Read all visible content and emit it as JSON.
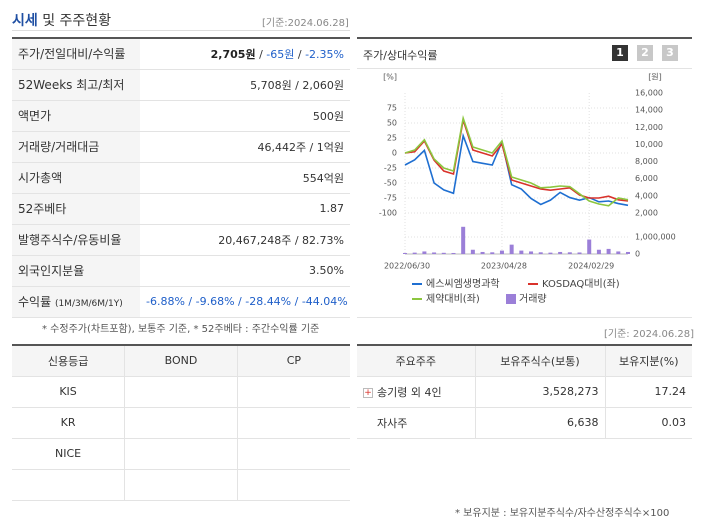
{
  "header": {
    "title_prefix": "시세",
    "title_rest": "및 주주현황",
    "date": "[기준:2024.06.28]"
  },
  "price_table": {
    "rows": [
      {
        "label": [
          {
            "text": "주가/전일대비/수익률",
            "style": "normal"
          }
        ],
        "value": [
          {
            "text": "2,705원",
            "style": "bold"
          },
          {
            "text": " / ",
            "style": "normal"
          },
          {
            "text": "-65원",
            "style": "blue"
          },
          {
            "text": " / ",
            "style": "normal"
          },
          {
            "text": "-2.35%",
            "style": "blue"
          }
        ]
      },
      {
        "label": [
          {
            "text": "52Weeks 최고/최저",
            "style": "normal"
          }
        ],
        "value": [
          {
            "text": "5,708원 / 2,060원",
            "style": "normal"
          }
        ]
      },
      {
        "label": [
          {
            "text": "액면가",
            "style": "normal"
          }
        ],
        "value": [
          {
            "text": "500원",
            "style": "normal"
          }
        ]
      },
      {
        "label": [
          {
            "text": "거래량/거래대금",
            "style": "normal"
          }
        ],
        "value": [
          {
            "text": "46,442주 / 1억원",
            "style": "normal"
          }
        ]
      },
      {
        "label": [
          {
            "text": "시가총액",
            "style": "normal"
          }
        ],
        "value": [
          {
            "text": "554억원",
            "style": "normal"
          }
        ]
      },
      {
        "label": [
          {
            "text": "52주베타",
            "style": "normal"
          }
        ],
        "value": [
          {
            "text": "1.87",
            "style": "normal"
          }
        ]
      },
      {
        "label": [
          {
            "text": "발행주식수/유동비율",
            "style": "normal"
          }
        ],
        "value": [
          {
            "text": "20,467,248주 / 82.73%",
            "style": "normal"
          }
        ]
      },
      {
        "label": [
          {
            "text": "외국인지분율",
            "style": "normal"
          }
        ],
        "value": [
          {
            "text": "3.50%",
            "style": "normal"
          }
        ]
      },
      {
        "label": [
          {
            "text": "수익률 ",
            "style": "normal"
          },
          {
            "text": "(1M/3M/6M/1Y)",
            "style": "small"
          }
        ],
        "value": [
          {
            "text": "-6.88% / -9.68% / -28.44% / -44.04%",
            "style": "blue"
          }
        ]
      }
    ]
  },
  "chart_panel": {
    "title": "주가/상대수익률",
    "buttons": [
      "1",
      "2",
      "3"
    ],
    "active": 0
  },
  "chart_data": {
    "type": "line",
    "categories": [
      "2022/06/30",
      null,
      null,
      null,
      null,
      null,
      null,
      null,
      null,
      null,
      "2023/04/28",
      null,
      null,
      null,
      null,
      null,
      null,
      null,
      null,
      "2024/02/29",
      null,
      null,
      null,
      null
    ],
    "series": [
      {
        "name": "에스씨엠생명과학",
        "color": "#1f6fd1",
        "axis": "y2",
        "values": [
          7600,
          8200,
          9300,
          5500,
          4700,
          4300,
          11000,
          8000,
          7800,
          7600,
          10300,
          5300,
          4800,
          3700,
          3000,
          3500,
          4400,
          3800,
          3500,
          3800,
          3300,
          3400,
          3100,
          2900
        ]
      },
      {
        "name": "KOSDAQ대비(좌)",
        "color": "#d9322b",
        "values": [
          0,
          2,
          20,
          -12,
          -30,
          -35,
          55,
          5,
          0,
          -5,
          15,
          -45,
          -50,
          -55,
          -60,
          -62,
          -60,
          -58,
          -70,
          -75,
          -75,
          -72,
          -78,
          -80
        ]
      },
      {
        "name": "제약대비(좌)",
        "color": "#8cc63f",
        "values": [
          0,
          5,
          22,
          -10,
          -25,
          -30,
          58,
          10,
          5,
          0,
          20,
          -40,
          -45,
          -50,
          -58,
          -57,
          -55,
          -56,
          -68,
          -80,
          -85,
          -88,
          -75,
          -78
        ]
      },
      {
        "name": "거래량",
        "color": "#9b7fd8",
        "type": "bar",
        "axis": "volume",
        "values": [
          60000,
          80000,
          150000,
          90000,
          70000,
          60000,
          1600000,
          250000,
          120000,
          100000,
          200000,
          550000,
          200000,
          150000,
          100000,
          80000,
          120000,
          100000,
          90000,
          850000,
          250000,
          300000,
          150000,
          120000
        ]
      }
    ],
    "ylabel": "[%]",
    "y2label": "[원]",
    "ylim": [
      -100,
      100
    ],
    "yticks": [
      75,
      50,
      25,
      0,
      -25,
      -50,
      -75,
      -100
    ],
    "y2lim": [
      2000,
      16000
    ],
    "y2ticks": [
      {
        "value": 16000,
        "label": "16,000"
      },
      {
        "value": 14000,
        "label": "14,000"
      },
      {
        "value": 12000,
        "label": "12,000"
      },
      {
        "value": 10000,
        "label": "10,000"
      },
      {
        "value": 8000,
        "label": "8,000"
      },
      {
        "value": 6000,
        "label": "6,000"
      },
      {
        "value": 4000,
        "label": "4,000"
      },
      {
        "value": 2000,
        "label": "2,000"
      }
    ],
    "vlim": [
      0,
      2000000
    ],
    "vticks": [
      {
        "value": 1000000,
        "label": "1,000,000"
      },
      0
    ],
    "grid": true
  },
  "notes": {
    "left": "* 수정주가(차트포함), 보통주 기준, * 52주베타 : 주간수익률 기준",
    "right_date": "[기준: 2024.06.28]",
    "bottom": "* 보유지분 : 보유지분주식수/자수산정주식수×100"
  },
  "credit_table": {
    "headers": [
      "신용등급",
      "BOND",
      "CP"
    ],
    "rows": [
      "KIS",
      "KR",
      "NICE"
    ]
  },
  "holder_table": {
    "headers": [
      "주요주주",
      "보유주식수(보통)",
      "보유지분(%)"
    ],
    "rows": [
      [
        "송기령 외 4인",
        "3,528,273",
        "17.24"
      ],
      [
        "자사주",
        "6,638",
        "0.03"
      ]
    ]
  }
}
